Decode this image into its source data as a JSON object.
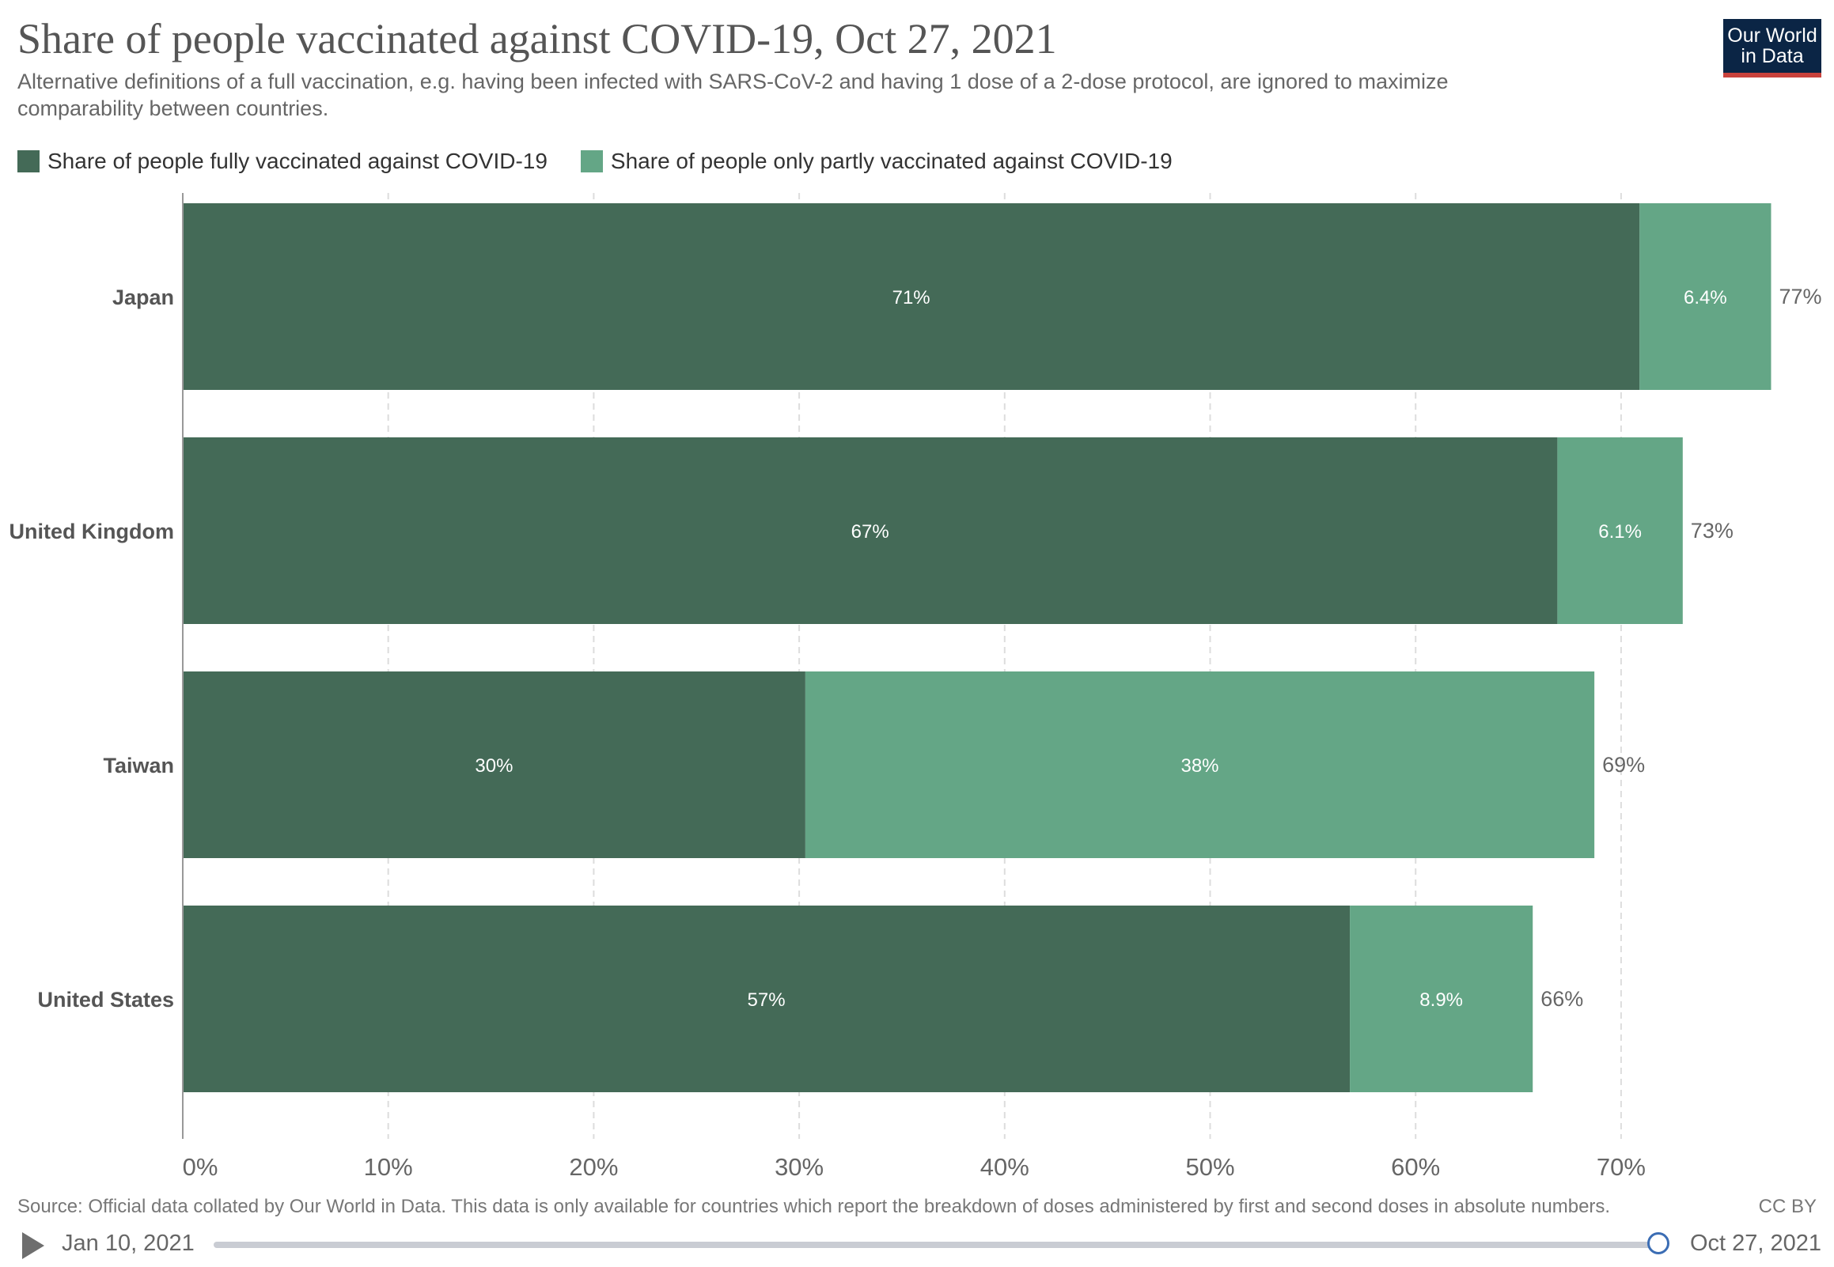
{
  "header": {
    "title": "Share of people vaccinated against COVID-19, Oct 27, 2021",
    "subtitle": "Alternative definitions of a full vaccination, e.g. having been infected with SARS-CoV-2 and having 1 dose of a 2-dose protocol, are ignored to maximize comparability between countries.",
    "logo_line1": "Our World",
    "logo_line2": "in Data"
  },
  "footer": {
    "source": "Source: Official data collated by Our World in Data. This data is only available for countries which report the breakdown of doses administered by first and second doses in absolute numbers.",
    "license": "CC BY"
  },
  "timeline": {
    "start_label": "Jan 10, 2021",
    "end_label": "Oct 27, 2021"
  },
  "colors": {
    "fully": "#446a57",
    "partly": "#64a686",
    "logo_bg": "#0b2545",
    "logo_accent": "#c9423c"
  },
  "chart_data": {
    "type": "bar",
    "orientation": "horizontal",
    "stacked": true,
    "categories": [
      "Japan",
      "United Kingdom",
      "Taiwan",
      "United States"
    ],
    "series": [
      {
        "name": "Share of people fully vaccinated against COVID-19",
        "values": [
          70.9,
          66.9,
          30.3,
          56.8
        ],
        "labels": [
          "71%",
          "67%",
          "30%",
          "57%"
        ]
      },
      {
        "name": "Share of people only partly vaccinated against COVID-19",
        "values": [
          6.4,
          6.1,
          38.4,
          8.9
        ],
        "labels": [
          "6.4%",
          "6.1%",
          "38%",
          "8.9%"
        ]
      }
    ],
    "totals": [
      "77%",
      "73%",
      "69%",
      "66%"
    ],
    "xticks": [
      "0%",
      "10%",
      "20%",
      "30%",
      "40%",
      "50%",
      "60%",
      "70%"
    ],
    "xlim": [
      0,
      80
    ],
    "grid": "vertical dashed",
    "legend_position": "top-left"
  }
}
